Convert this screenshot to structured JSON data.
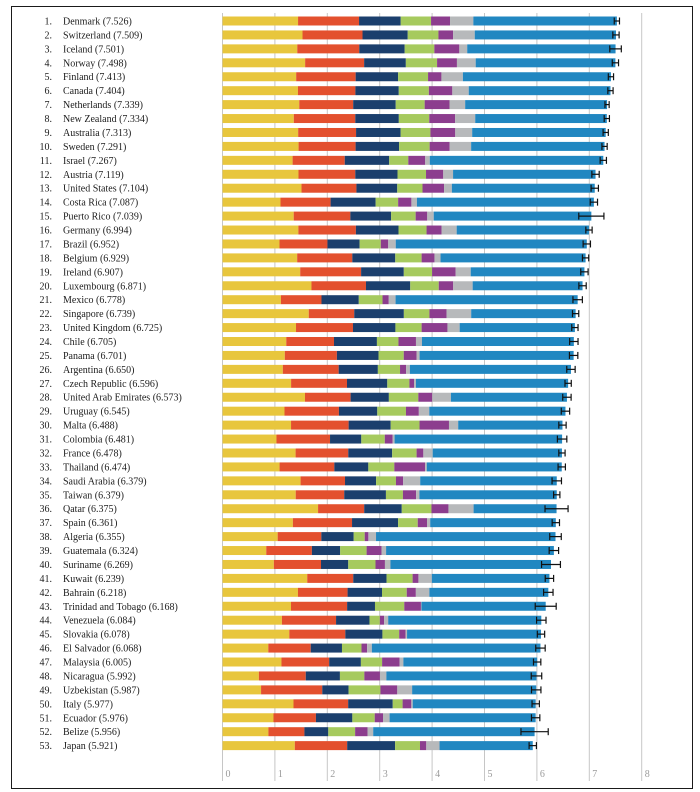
{
  "colors": {
    "background": "#ffffff",
    "frame": "#1a1a1a",
    "gridline": "#c6c6c6",
    "axis_text": "#9b9b9b",
    "text": "#1c1c1c",
    "error_bar": "#111111",
    "segments": [
      "#e8c63d",
      "#e3502e",
      "#1b3f6d",
      "#a6ca5e",
      "#8c3d8e",
      "#b7b9bb",
      "#2187c1"
    ]
  },
  "chart_data": {
    "type": "bar",
    "orientation": "horizontal",
    "stacked": true,
    "grid": true,
    "xlim": [
      0,
      8
    ],
    "x_axis_ticks": [
      "0",
      "1",
      "2",
      "3",
      "4",
      "5",
      "6",
      "7",
      "8"
    ],
    "segment_keys": [
      "yellow",
      "orange",
      "navy",
      "green",
      "purple",
      "gray",
      "lightblue"
    ],
    "error_bars": "95-percent-interval-whiskers",
    "rows": [
      {
        "rank": "1.",
        "label": "Denmark (7.526)",
        "score": 7.526,
        "values": [
          1.442,
          1.164,
          0.795,
          0.579,
          0.362,
          0.445,
          2.739
        ],
        "ci": 0.05
      },
      {
        "rank": "2.",
        "label": "Switzerland (7.509)",
        "score": 7.509,
        "values": [
          1.527,
          1.145,
          0.863,
          0.586,
          0.281,
          0.412,
          2.695
        ],
        "ci": 0.06
      },
      {
        "rank": "3.",
        "label": "Iceland (7.501)",
        "score": 7.501,
        "values": [
          1.427,
          1.183,
          0.867,
          0.566,
          0.477,
          0.15,
          2.831
        ],
        "ci": 0.11
      },
      {
        "rank": "4.",
        "label": "Norway (7.498)",
        "score": 7.498,
        "values": [
          1.577,
          1.126,
          0.796,
          0.596,
          0.379,
          0.358,
          2.666
        ],
        "ci": 0.06
      },
      {
        "rank": "5.",
        "label": "Finland (7.413)",
        "score": 7.413,
        "values": [
          1.406,
          1.135,
          0.811,
          0.571,
          0.255,
          0.41,
          2.825
        ],
        "ci": 0.05
      },
      {
        "rank": "6.",
        "label": "Canada (7.404)",
        "score": 7.404,
        "values": [
          1.44,
          1.096,
          0.828,
          0.574,
          0.448,
          0.313,
          2.705
        ],
        "ci": 0.05
      },
      {
        "rank": "7.",
        "label": "Netherlands (7.339)",
        "score": 7.339,
        "values": [
          1.465,
          1.029,
          0.812,
          0.552,
          0.474,
          0.299,
          2.708
        ],
        "ci": 0.04
      },
      {
        "rank": "8.",
        "label": "New Zealand (7.334)",
        "score": 7.334,
        "values": [
          1.361,
          1.173,
          0.831,
          0.581,
          0.494,
          0.383,
          2.511
        ],
        "ci": 0.05
      },
      {
        "rank": "9.",
        "label": "Australia (7.313)",
        "score": 7.313,
        "values": [
          1.444,
          1.105,
          0.851,
          0.568,
          0.474,
          0.323,
          2.548
        ],
        "ci": 0.05
      },
      {
        "rank": "10.",
        "label": "Sweden (7.291)",
        "score": 7.291,
        "values": [
          1.452,
          1.088,
          0.831,
          0.582,
          0.383,
          0.409,
          2.546
        ],
        "ci": 0.05
      },
      {
        "rank": "11.",
        "label": "Israel (7.267)",
        "score": 7.267,
        "values": [
          1.338,
          0.995,
          0.849,
          0.364,
          0.323,
          0.087,
          3.311
        ],
        "ci": 0.06
      },
      {
        "rank": "12.",
        "label": "Austria (7.119)",
        "score": 7.119,
        "values": [
          1.45,
          1.084,
          0.806,
          0.544,
          0.329,
          0.187,
          2.719
        ],
        "ci": 0.07
      },
      {
        "rank": "13.",
        "label": "United States (7.104)",
        "score": 7.104,
        "values": [
          1.508,
          1.048,
          0.779,
          0.482,
          0.411,
          0.149,
          2.727
        ],
        "ci": 0.07
      },
      {
        "rank": "14.",
        "label": "Costa Rica (7.087)",
        "score": 7.087,
        "values": [
          1.107,
          0.956,
          0.86,
          0.429,
          0.253,
          0.105,
          3.377
        ],
        "ci": 0.07
      },
      {
        "rank": "15.",
        "label": "Puerto Rico (7.039)",
        "score": 7.039,
        "values": [
          1.359,
          1.081,
          0.778,
          0.468,
          0.222,
          0.123,
          3.008
        ],
        "ci": 0.24
      },
      {
        "rank": "16.",
        "label": "Germany (6.994)",
        "score": 6.994,
        "values": [
          1.448,
          1.098,
          0.813,
          0.535,
          0.286,
          0.289,
          2.525
        ],
        "ci": 0.06
      },
      {
        "rank": "17.",
        "label": "Brazil (6.952)",
        "score": 6.952,
        "values": [
          1.088,
          0.915,
          0.614,
          0.404,
          0.142,
          0.143,
          3.646
        ],
        "ci": 0.07
      },
      {
        "rank": "18.",
        "label": "Belgium (6.929)",
        "score": 6.929,
        "values": [
          1.425,
          1.052,
          0.82,
          0.503,
          0.245,
          0.116,
          2.768
        ],
        "ci": 0.06
      },
      {
        "rank": "19.",
        "label": "Ireland (6.907)",
        "score": 6.907,
        "values": [
          1.483,
          1.162,
          0.815,
          0.54,
          0.45,
          0.287,
          2.17
        ],
        "ci": 0.07
      },
      {
        "rank": "20.",
        "label": "Luxembourg (6.871)",
        "score": 6.871,
        "values": [
          1.698,
          1.04,
          0.845,
          0.544,
          0.276,
          0.371,
          2.097
        ],
        "ci": 0.07
      },
      {
        "rank": "21.",
        "label": "Mexico (6.778)",
        "score": 6.778,
        "values": [
          1.115,
          0.774,
          0.712,
          0.453,
          0.119,
          0.13,
          3.475
        ],
        "ci": 0.09
      },
      {
        "rank": "22.",
        "label": "Singapore (6.739)",
        "score": 6.739,
        "values": [
          1.646,
          0.868,
          0.947,
          0.488,
          0.327,
          0.47,
          1.993
        ],
        "ci": 0.06
      },
      {
        "rank": "23.",
        "label": "United Kingdom (6.725)",
        "score": 6.725,
        "values": [
          1.403,
          1.087,
          0.81,
          0.5,
          0.493,
          0.233,
          2.199
        ],
        "ci": 0.06
      },
      {
        "rank": "24.",
        "label": "Chile (6.705)",
        "score": 6.705,
        "values": [
          1.217,
          0.911,
          0.819,
          0.411,
          0.334,
          0.115,
          2.898
        ],
        "ci": 0.08
      },
      {
        "rank": "25.",
        "label": "Panama (6.701)",
        "score": 6.701,
        "values": [
          1.189,
          0.994,
          0.795,
          0.481,
          0.244,
          0.058,
          2.94
        ],
        "ci": 0.08
      },
      {
        "rank": "26.",
        "label": "Argentina (6.650)",
        "score": 6.65,
        "values": [
          1.151,
          1.066,
          0.748,
          0.423,
          0.115,
          0.073,
          3.074
        ],
        "ci": 0.08
      },
      {
        "rank": "27.",
        "label": "Czech Republic (6.596)",
        "score": 6.596,
        "values": [
          1.309,
          1.067,
          0.769,
          0.422,
          0.088,
          0.036,
          2.905
        ],
        "ci": 0.06
      },
      {
        "rank": "28.",
        "label": "United Arab Emirates (6.573)",
        "score": 6.573,
        "values": [
          1.574,
          0.871,
          0.73,
          0.562,
          0.266,
          0.356,
          2.214
        ],
        "ci": 0.08
      },
      {
        "rank": "29.",
        "label": "Uruguay (6.545)",
        "score": 6.545,
        "values": [
          1.183,
          1.039,
          0.732,
          0.547,
          0.246,
          0.199,
          2.599
        ],
        "ci": 0.08
      },
      {
        "rank": "30.",
        "label": "Malta (6.488)",
        "score": 6.488,
        "values": [
          1.308,
          1.099,
          0.803,
          0.55,
          0.562,
          0.176,
          1.99
        ],
        "ci": 0.07
      },
      {
        "rank": "31.",
        "label": "Colombia (6.481)",
        "score": 6.481,
        "values": [
          1.03,
          1.022,
          0.597,
          0.448,
          0.151,
          0.036,
          3.197
        ],
        "ci": 0.09
      },
      {
        "rank": "32.",
        "label": "France (6.478)",
        "score": 6.478,
        "values": [
          1.395,
          1.005,
          0.838,
          0.466,
          0.129,
          0.178,
          2.467
        ],
        "ci": 0.06
      },
      {
        "rank": "33.",
        "label": "Thailand (6.474)",
        "score": 6.474,
        "values": [
          1.089,
          1.045,
          0.649,
          0.496,
          0.587,
          0.032,
          2.576
        ],
        "ci": 0.07
      },
      {
        "rank": "34.",
        "label": "Saudi Arabia (6.379)",
        "score": 6.379,
        "values": [
          1.49,
          0.848,
          0.593,
          0.379,
          0.138,
          0.325,
          2.606
        ],
        "ci": 0.09
      },
      {
        "rank": "35.",
        "label": "Taiwan (6.379)",
        "score": 6.379,
        "values": [
          1.397,
          0.926,
          0.796,
          0.324,
          0.252,
          0.063,
          2.621
        ],
        "ci": 0.06
      },
      {
        "rank": "36.",
        "label": "Qatar (6.375)",
        "score": 6.375,
        "values": [
          1.824,
          0.88,
          0.717,
          0.567,
          0.324,
          0.48,
          1.583
        ],
        "ci": 0.22
      },
      {
        "rank": "37.",
        "label": "Spain (6.361)",
        "score": 6.361,
        "values": [
          1.343,
          1.129,
          0.879,
          0.375,
          0.177,
          0.061,
          2.397
        ],
        "ci": 0.07
      },
      {
        "rank": "38.",
        "label": "Algeria (6.355)",
        "score": 6.355,
        "values": [
          1.053,
          0.833,
          0.618,
          0.21,
          0.07,
          0.146,
          3.425
        ],
        "ci": 0.11
      },
      {
        "rank": "39.",
        "label": "Guatemala (6.324)",
        "score": 6.324,
        "values": [
          0.835,
          0.871,
          0.54,
          0.504,
          0.284,
          0.088,
          3.202
        ],
        "ci": 0.09
      },
      {
        "rank": "40.",
        "label": "Suriname (6.269)",
        "score": 6.269,
        "values": [
          0.98,
          0.9,
          0.52,
          0.52,
          0.18,
          0.105,
          3.064
        ],
        "ci": 0.18
      },
      {
        "rank": "41.",
        "label": "Kuwait (6.239)",
        "score": 6.239,
        "values": [
          1.617,
          0.878,
          0.636,
          0.497,
          0.111,
          0.256,
          2.244
        ],
        "ci": 0.08
      },
      {
        "rank": "42.",
        "label": "Bahrain (6.218)",
        "score": 6.218,
        "values": [
          1.44,
          0.947,
          0.657,
          0.472,
          0.174,
          0.258,
          2.27
        ],
        "ci": 0.09
      },
      {
        "rank": "43.",
        "label": "Trinidad and Tobago (6.168)",
        "score": 6.168,
        "values": [
          1.307,
          1.071,
          0.532,
          0.559,
          0.318,
          0.011,
          2.37
        ],
        "ci": 0.2
      },
      {
        "rank": "44.",
        "label": "Venezuela (6.084)",
        "score": 6.084,
        "values": [
          1.134,
          1.033,
          0.638,
          0.198,
          0.082,
          0.077,
          2.922
        ],
        "ci": 0.09
      },
      {
        "rank": "45.",
        "label": "Slovakia (6.078)",
        "score": 6.078,
        "values": [
          1.275,
          1.069,
          0.708,
          0.32,
          0.12,
          0.03,
          2.556
        ],
        "ci": 0.07
      },
      {
        "rank": "46.",
        "label": "El Salvador (6.068)",
        "score": 6.068,
        "values": [
          0.874,
          0.81,
          0.596,
          0.373,
          0.107,
          0.09,
          3.218
        ],
        "ci": 0.09
      },
      {
        "rank": "47.",
        "label": "Malaysia (6.005)",
        "score": 6.005,
        "values": [
          1.125,
          0.911,
          0.605,
          0.405,
          0.335,
          0.071,
          2.553
        ],
        "ci": 0.07
      },
      {
        "rank": "48.",
        "label": "Nicaragua (5.992)",
        "score": 5.992,
        "values": [
          0.694,
          0.895,
          0.652,
          0.466,
          0.298,
          0.122,
          2.865
        ],
        "ci": 0.1
      },
      {
        "rank": "49.",
        "label": "Uzbekistan (5.987)",
        "score": 5.987,
        "values": [
          0.736,
          1.168,
          0.502,
          0.608,
          0.322,
          0.283,
          2.368
        ],
        "ci": 0.09
      },
      {
        "rank": "50.",
        "label": "Italy (5.977)",
        "score": 5.977,
        "values": [
          1.355,
          1.043,
          0.851,
          0.188,
          0.167,
          0.026,
          2.347
        ],
        "ci": 0.07
      },
      {
        "rank": "51.",
        "label": "Ecuador (5.976)",
        "score": 5.976,
        "values": [
          0.973,
          0.81,
          0.695,
          0.427,
          0.158,
          0.126,
          2.787
        ],
        "ci": 0.08
      },
      {
        "rank": "52.",
        "label": "Belize (5.956)",
        "score": 5.956,
        "values": [
          0.876,
          0.687,
          0.456,
          0.512,
          0.237,
          0.108,
          3.08
        ],
        "ci": 0.26
      },
      {
        "rank": "53.",
        "label": "Japan (5.921)",
        "score": 5.921,
        "values": [
          1.38,
          0.999,
          0.915,
          0.475,
          0.12,
          0.253,
          1.779
        ],
        "ci": 0.07
      }
    ]
  }
}
